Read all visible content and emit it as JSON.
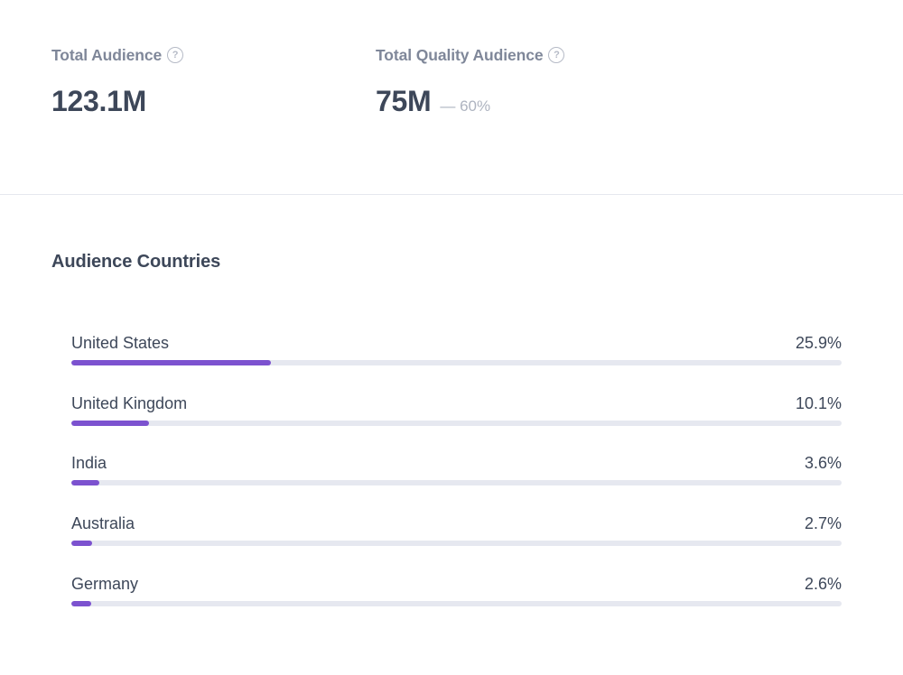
{
  "metrics": [
    {
      "label": "Total Audience",
      "value": "123.1M",
      "sub": ""
    },
    {
      "label": "Total Quality Audience",
      "value": "75M",
      "sub": "— 60%"
    }
  ],
  "help_icon_glyph": "?",
  "audience_countries": {
    "title": "Audience Countries",
    "items": [
      {
        "name": "United States",
        "percent_label": "25.9%",
        "percent": 25.9
      },
      {
        "name": "United Kingdom",
        "percent_label": "10.1%",
        "percent": 10.1
      },
      {
        "name": "India",
        "percent_label": "3.6%",
        "percent": 3.6
      },
      {
        "name": "Australia",
        "percent_label": "2.7%",
        "percent": 2.7
      },
      {
        "name": "Germany",
        "percent_label": "2.6%",
        "percent": 2.6
      }
    ]
  },
  "colors": {
    "accent": "#7c52cf",
    "track": "#e6e8f0"
  }
}
